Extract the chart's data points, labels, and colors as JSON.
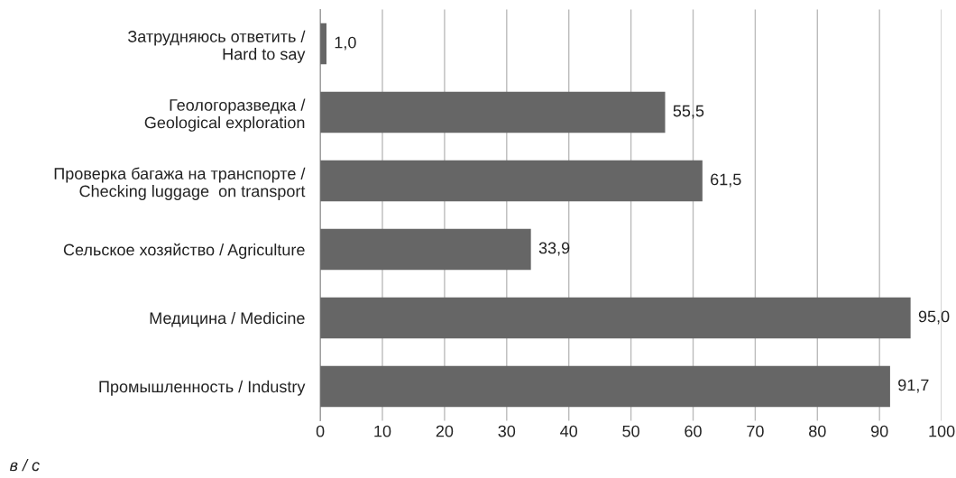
{
  "chart_data": {
    "type": "bar",
    "orientation": "horizontal",
    "categories": [
      "Затрудняюсь ответить /\nHard to say",
      "Геологоразведка /\nGeological exploration",
      "Проверка багажа на транспорте /\nChecking luggage  on transport",
      "Сельское хозяйство / Agriculture",
      "Медицина / Medicine",
      "Промышленность / Industry"
    ],
    "values": [
      1.0,
      55.5,
      61.5,
      33.9,
      95.0,
      91.7
    ],
    "value_labels": [
      "1,0",
      "55,5",
      "61,5",
      "33,9",
      "95,0",
      "91,7"
    ],
    "color": "#666666",
    "xlim": [
      0,
      100
    ],
    "xticks": [
      0,
      10,
      20,
      30,
      40,
      50,
      60,
      70,
      80,
      90,
      100
    ],
    "grid": "x",
    "annotations": [
      "в / с"
    ]
  }
}
